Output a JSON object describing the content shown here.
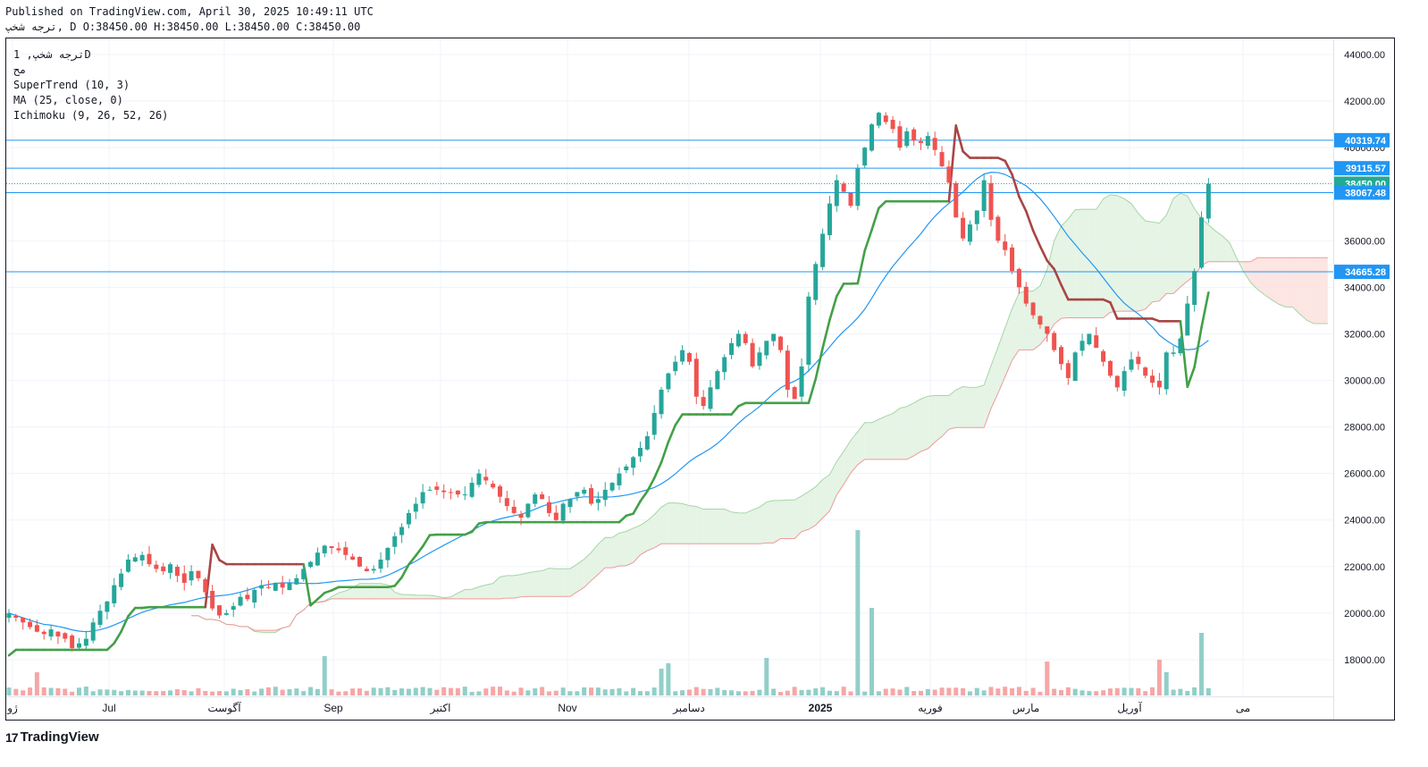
{
  "header": {
    "published": "Published on TradingView.com, April 30, 2025 10:49:11 UTC",
    "ohlc": "ترجه شخپ, D O:38450.00 H:38450.00 L:38450.00 C:38450.00"
  },
  "legend": {
    "symbol": "ترجه شخپ, 1D",
    "sub": "مح",
    "supertrend": "SuperTrend (10, 3)",
    "ma": "MA (25, close, 0)",
    "ichimoku": "Ichimoku (9, 26, 52, 26)"
  },
  "brand": {
    "name": "TradingView",
    "mark": "17"
  },
  "colors": {
    "up": "#26a69a",
    "down": "#ef5350",
    "st_up": "#43a047",
    "st_down": "#a94545",
    "ma": "#2196f3",
    "hline": "#2196f3",
    "kumo_bull": "#e0f2e0",
    "kumo_bear": "#fbe0dd",
    "last_price": "#22ab94"
  },
  "chart_data": {
    "type": "candlestick",
    "ylim": [
      16000,
      44500
    ],
    "y_ticks": [
      "44000.00",
      "42000.00",
      "40000.00",
      "38000.00",
      "36000.00",
      "34000.00",
      "32000.00",
      "30000.00",
      "28000.00",
      "26000.00",
      "24000.00",
      "22000.00",
      "20000.00",
      "18000.00"
    ],
    "x_labels": [
      "ژو",
      "Jul",
      "آگوست",
      "Sep",
      "اکتبر",
      "Nov",
      "دسامبر",
      "2025",
      "فوریه",
      "مارس",
      "آوریل",
      "می"
    ],
    "price_tags": [
      {
        "label": "40319.74",
        "value": 40319.74,
        "color": "#2196f3"
      },
      {
        "label": "39115.57",
        "value": 39115.57,
        "color": "#2196f3"
      },
      {
        "label": "38450.00",
        "value": 38450,
        "color": "#22ab94"
      },
      {
        "label": "38067.48",
        "value": 38067.48,
        "color": "#2196f3"
      },
      {
        "label": "34665.28",
        "value": 34665.28,
        "color": "#2196f3"
      }
    ],
    "horizontal_lines": [
      40319.74,
      39115.57,
      38067.48,
      34665.28
    ],
    "last_price": 38450,
    "closes": [
      20000,
      19800,
      19600,
      19400,
      19200,
      19100,
      19300,
      19000,
      18900,
      18500,
      18700,
      18900,
      19600,
      20100,
      20500,
      21200,
      21700,
      22300,
      22400,
      22500,
      22100,
      21900,
      21800,
      22100,
      21600,
      21300,
      21800,
      21500,
      20900,
      20200,
      19900,
      20000,
      20300,
      20700,
      20600,
      21000,
      21200,
      21100,
      21300,
      21100,
      21300,
      21500,
      21900,
      22200,
      22600,
      22900,
      22800,
      22700,
      22500,
      22300,
      22000,
      21800,
      21900,
      22300,
      22800,
      23300,
      23700,
      24300,
      24700,
      25200,
      25300,
      25300,
      25200,
      25200,
      25100,
      25100,
      25600,
      26000,
      25700,
      25400,
      25000,
      24600,
      24300,
      24100,
      24700,
      25100,
      24900,
      24300,
      24000,
      24700,
      24900,
      25200,
      25300,
      24700,
      24900,
      25300,
      25600,
      26000,
      26300,
      26700,
      27100,
      27600,
      28600,
      29600,
      30300,
      30800,
      31300,
      30800,
      29300,
      28900,
      29700,
      30400,
      31000,
      31600,
      32000,
      31600,
      30600,
      31200,
      31700,
      32000,
      31300,
      29600,
      29200,
      30600,
      33600,
      35000,
      36300,
      37600,
      38600,
      38100,
      37500,
      39100,
      40000,
      41000,
      41500,
      41100,
      40800,
      40000,
      40700,
      40300,
      40200,
      40500,
      39900,
      39200,
      38500,
      37000,
      36100,
      36700,
      37300,
      38600,
      36900,
      36000,
      35600,
      34700,
      34000,
      33300,
      32800,
      32400,
      32000,
      31300,
      30700,
      30100,
      31200,
      31700,
      32000,
      31400,
      30800,
      30200,
      29700,
      30400,
      30900,
      30700,
      30200,
      29900,
      29700,
      31200,
      31200,
      31800,
      33300,
      34700,
      37000,
      38450
    ],
    "supertrend": "green below price Jun–Aug (~20300), red above Aug–Sep (~21400), green Sep–Nov rising to ~24800, red ~25600 in Nov, green Nov–Feb rising to ~36200, red Feb–Apr falling from ~41000 to ~32400, green from late Apr rising to ~34665",
    "ma25": "smooth uptrend from ~21700 (Jun) to ~38900 (Feb), declining to ~30600 (Apr), turning up to ~32200",
    "volume": "low baseline with spikes at early Sep, late Jan (largest) and late Apr"
  }
}
